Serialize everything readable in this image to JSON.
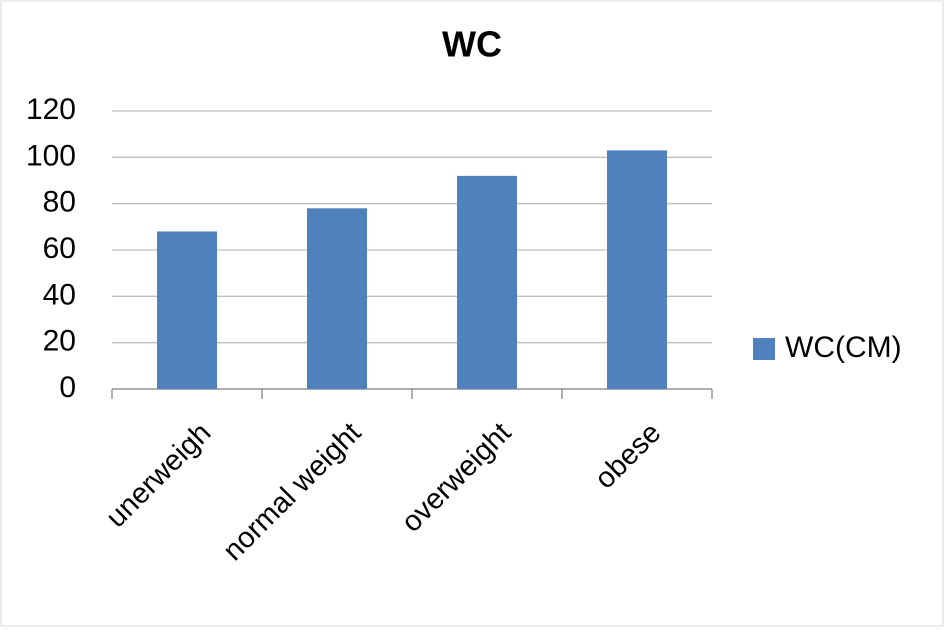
{
  "chart_data": {
    "type": "bar",
    "title": "WC",
    "categories": [
      "unerweigh",
      "normal weight",
      "overweight",
      "obese"
    ],
    "series": [
      {
        "name": "WC(CM)",
        "color": "#4f81bd",
        "values": [
          68,
          78,
          92,
          103
        ]
      }
    ],
    "ylim": [
      0,
      120
    ],
    "yticks": [
      0,
      20,
      40,
      60,
      80,
      100,
      120
    ],
    "grid": true,
    "legend": "right"
  }
}
